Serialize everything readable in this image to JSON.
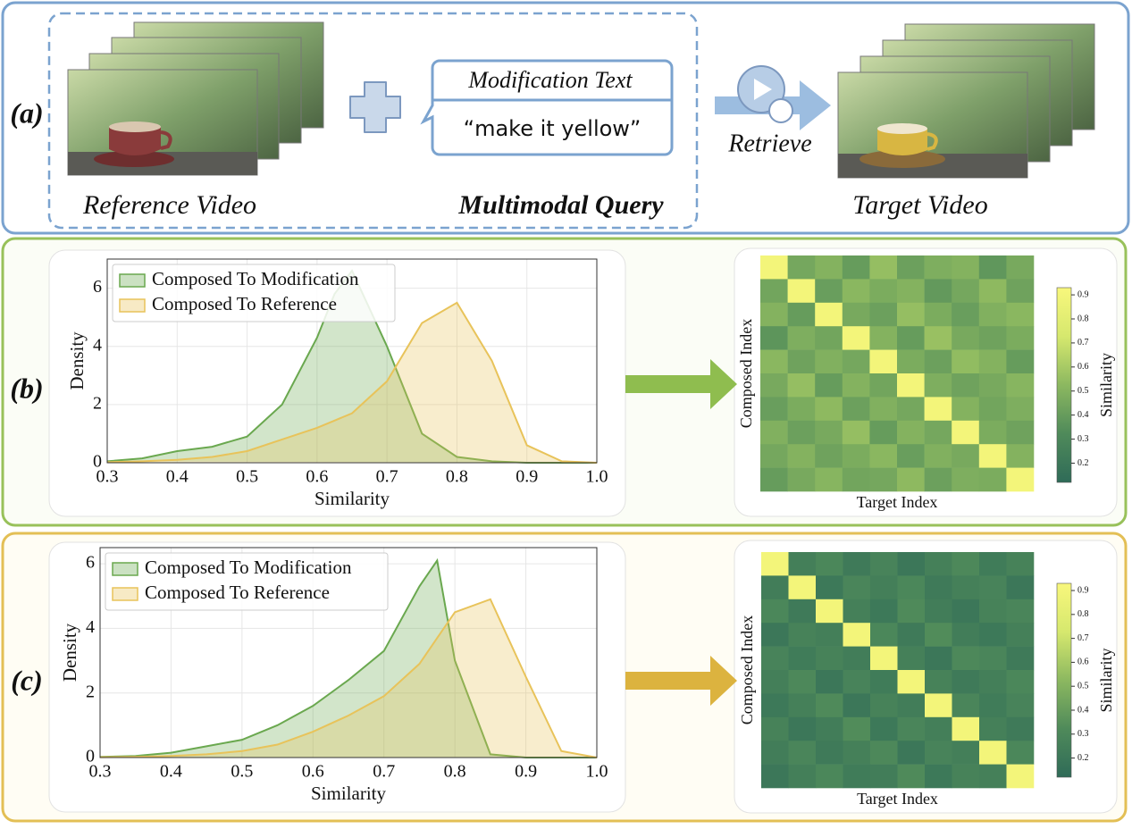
{
  "panel_a": {
    "label": "(a)",
    "reference_caption": "Reference Video",
    "query_caption": "Multimodal Query",
    "modification_title": "Modification Text",
    "modification_text": "“make it yellow”",
    "retrieve": "Retrieve",
    "target_caption": "Target Video"
  },
  "panel_labels": [
    "(b)",
    "(c)"
  ],
  "chart_data": [
    {
      "type": "area",
      "xlabel": "Similarity",
      "ylabel": "Density",
      "x": [
        0.3,
        0.35,
        0.4,
        0.45,
        0.5,
        0.55,
        0.6,
        0.625,
        0.65,
        0.7,
        0.75,
        0.8,
        0.85,
        0.9,
        0.95,
        1.0
      ],
      "series": [
        {
          "name": "Composed To Modification",
          "color": "#6aa84f",
          "values": [
            0.05,
            0.15,
            0.4,
            0.55,
            0.9,
            2.0,
            4.3,
            5.8,
            6.6,
            4.0,
            1.0,
            0.2,
            0.05,
            0,
            0,
            0
          ]
        },
        {
          "name": "Composed To Reference",
          "color": "#e8c35a",
          "values": [
            0.02,
            0.05,
            0.1,
            0.2,
            0.4,
            0.8,
            1.2,
            1.45,
            1.7,
            2.8,
            4.8,
            5.5,
            3.5,
            0.6,
            0.05,
            0
          ]
        }
      ],
      "xlim": [
        0.3,
        1.0
      ],
      "ylim": [
        0,
        7
      ],
      "xticks": [
        0.3,
        0.4,
        0.5,
        0.6,
        0.7,
        0.8,
        0.9,
        {
          "value": 1,
          "label": "1.0"
        }
      ],
      "yticks": [
        0,
        2,
        4,
        6
      ],
      "grid": true,
      "legend": "upper left"
    },
    {
      "type": "heatmap",
      "xlabel": "Target Index",
      "ylabel": "Composed Index",
      "colorbar_label": "Similarity",
      "clim": [
        0.12,
        0.93
      ],
      "cticks": [
        0.2,
        0.3,
        0.4,
        0.5,
        0.6,
        0.7,
        0.8,
        0.9
      ],
      "colormap": [
        "#2f6b58",
        "#4f8a5a",
        "#8cb860",
        "#d6e86e",
        "#f8f77c"
      ],
      "values": [
        [
          0.9,
          0.45,
          0.5,
          0.4,
          0.55,
          0.42,
          0.48,
          0.5,
          0.38,
          0.46
        ],
        [
          0.44,
          0.9,
          0.41,
          0.52,
          0.47,
          0.5,
          0.39,
          0.45,
          0.53,
          0.43
        ],
        [
          0.5,
          0.4,
          0.9,
          0.46,
          0.42,
          0.55,
          0.47,
          0.41,
          0.49,
          0.52
        ],
        [
          0.37,
          0.48,
          0.44,
          0.9,
          0.5,
          0.4,
          0.56,
          0.46,
          0.43,
          0.47
        ],
        [
          0.52,
          0.43,
          0.49,
          0.45,
          0.9,
          0.47,
          0.42,
          0.54,
          0.5,
          0.4
        ],
        [
          0.46,
          0.55,
          0.4,
          0.5,
          0.44,
          0.9,
          0.48,
          0.43,
          0.46,
          0.51
        ],
        [
          0.41,
          0.47,
          0.53,
          0.42,
          0.49,
          0.45,
          0.9,
          0.5,
          0.44,
          0.48
        ],
        [
          0.49,
          0.42,
          0.46,
          0.55,
          0.4,
          0.5,
          0.45,
          0.9,
          0.47,
          0.43
        ],
        [
          0.45,
          0.5,
          0.43,
          0.47,
          0.52,
          0.41,
          0.49,
          0.46,
          0.9,
          0.5
        ],
        [
          0.4,
          0.46,
          0.51,
          0.44,
          0.45,
          0.53,
          0.42,
          0.48,
          0.47,
          0.9
        ]
      ]
    },
    {
      "type": "area",
      "xlabel": "Similarity",
      "ylabel": "Density",
      "x": [
        0.3,
        0.35,
        0.4,
        0.45,
        0.5,
        0.55,
        0.6,
        0.65,
        0.7,
        0.75,
        0.775,
        0.8,
        0.85,
        0.9,
        0.95,
        1.0
      ],
      "series": [
        {
          "name": "Composed To Modification",
          "color": "#6aa84f",
          "values": [
            0.02,
            0.05,
            0.15,
            0.35,
            0.55,
            1.0,
            1.6,
            2.4,
            3.3,
            5.3,
            6.1,
            3.0,
            0.1,
            0,
            0,
            0
          ]
        },
        {
          "name": "Composed To Reference",
          "color": "#e8c35a",
          "values": [
            0.01,
            0.02,
            0.05,
            0.1,
            0.2,
            0.4,
            0.8,
            1.3,
            1.9,
            2.9,
            3.7,
            4.5,
            4.9,
            2.5,
            0.2,
            0
          ]
        }
      ],
      "xlim": [
        0.3,
        1.0
      ],
      "ylim": [
        0,
        6.5
      ],
      "xticks": [
        0.3,
        0.4,
        0.5,
        0.6,
        0.7,
        0.8,
        0.9,
        {
          "value": 1,
          "label": "1.0"
        }
      ],
      "yticks": [
        0,
        2,
        4,
        6
      ],
      "grid": true,
      "legend": "upper left"
    },
    {
      "type": "heatmap",
      "xlabel": "Target Index",
      "ylabel": "Composed Index",
      "colorbar_label": "Similarity",
      "clim": [
        0.12,
        0.93
      ],
      "cticks": [
        0.2,
        0.3,
        0.4,
        0.5,
        0.6,
        0.7,
        0.8,
        0.9
      ],
      "colormap": [
        "#2f6b58",
        "#4f8a5a",
        "#8cb860",
        "#d6e86e",
        "#f8f77c"
      ],
      "values": [
        [
          0.9,
          0.25,
          0.3,
          0.22,
          0.28,
          0.2,
          0.26,
          0.31,
          0.23,
          0.27
        ],
        [
          0.24,
          0.9,
          0.21,
          0.29,
          0.25,
          0.3,
          0.22,
          0.26,
          0.28,
          0.2
        ],
        [
          0.3,
          0.22,
          0.9,
          0.26,
          0.21,
          0.32,
          0.24,
          0.2,
          0.27,
          0.29
        ],
        [
          0.2,
          0.27,
          0.25,
          0.9,
          0.3,
          0.22,
          0.33,
          0.24,
          0.21,
          0.26
        ],
        [
          0.28,
          0.23,
          0.27,
          0.24,
          0.9,
          0.26,
          0.2,
          0.31,
          0.29,
          0.22
        ],
        [
          0.25,
          0.31,
          0.2,
          0.28,
          0.23,
          0.9,
          0.27,
          0.22,
          0.25,
          0.3
        ],
        [
          0.21,
          0.26,
          0.32,
          0.2,
          0.27,
          0.24,
          0.9,
          0.29,
          0.23,
          0.28
        ],
        [
          0.27,
          0.2,
          0.24,
          0.33,
          0.21,
          0.29,
          0.25,
          0.9,
          0.26,
          0.22
        ],
        [
          0.24,
          0.29,
          0.22,
          0.26,
          0.31,
          0.2,
          0.28,
          0.25,
          0.9,
          0.3
        ],
        [
          0.2,
          0.25,
          0.3,
          0.23,
          0.24,
          0.32,
          0.21,
          0.27,
          0.26,
          0.9
        ]
      ]
    }
  ]
}
